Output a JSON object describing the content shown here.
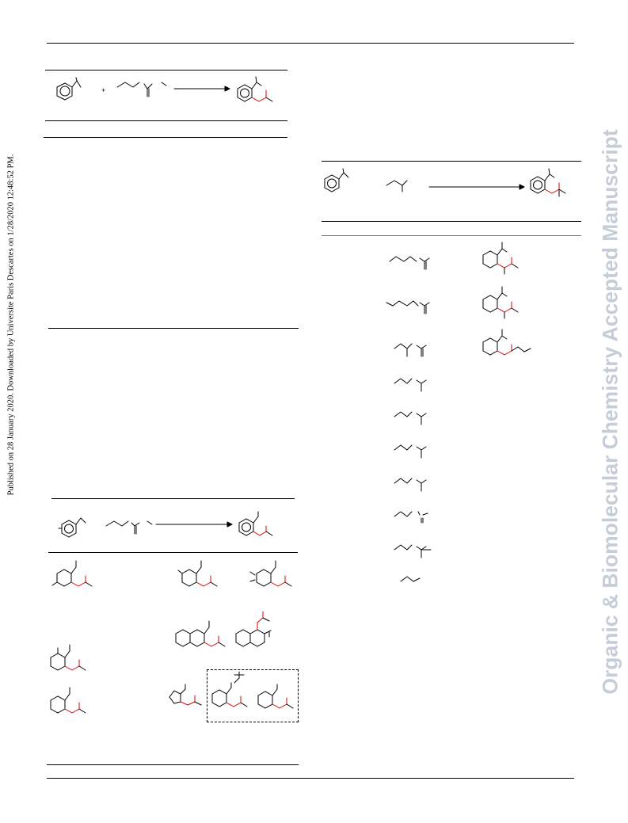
{
  "sidebar_note": "Published on 28 January 2020. Downloaded by Universite Paris Descartes on 1/28/2020 12:48:52 PM.",
  "watermark": "Organic & Biomolecular Chemistry Accepted Manuscript",
  "scheme1": {
    "plus": "+"
  },
  "colors": {
    "highlight_bond": "#e00000",
    "watermark": "#c5cdd8"
  },
  "structures": {
    "scheme1": [
      "styrene-reactant",
      "allyl-ester-reactant",
      "dihydronaphthalene-product"
    ],
    "scheme2": [
      "styrene-reactant",
      "alkene-reactant",
      "product"
    ],
    "scheme2_rows": 10,
    "scheme2_products": 3,
    "scheme3_products": 10
  }
}
